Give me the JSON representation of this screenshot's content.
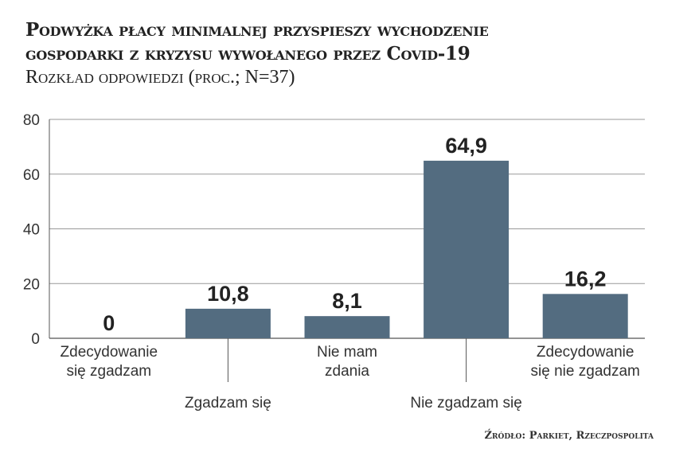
{
  "chart_data": {
    "type": "bar",
    "title_line1": "Podwyżka płacy minimalnej przyspieszy wychodzenie",
    "title_line2": "gospodarki z kryzysu wywołanego przez Covid-19",
    "subtitle": "Rozkład odpowiedzi (proc.; N=37)",
    "categories": [
      [
        "Zdecydowanie",
        "się zgadzam"
      ],
      [
        "Zgadzam się"
      ],
      [
        "Nie mam",
        "zdania"
      ],
      [
        "Nie zgadzam się"
      ],
      [
        "Zdecydowanie",
        "się nie zgadzam"
      ]
    ],
    "values": [
      0,
      10.8,
      8.1,
      64.9,
      16.2
    ],
    "value_labels": [
      "0",
      "10,8",
      "8,1",
      "64,9",
      "16,2"
    ],
    "ylim": [
      0,
      80
    ],
    "yticks": [
      0,
      20,
      40,
      60,
      80
    ],
    "grid": true,
    "xlabel": "",
    "ylabel": "",
    "bar_color": "#536c80",
    "source": "Źródło: Parkiet, Rzeczpospolita"
  }
}
